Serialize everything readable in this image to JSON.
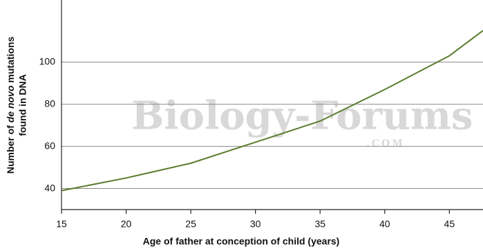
{
  "chart_data": {
    "type": "line",
    "xlabel": "Age of father at conception of child (years)",
    "ylabel": [
      [
        "Number of ",
        "de novo",
        " mutations"
      ],
      [
        "found in DNA"
      ]
    ],
    "watermark": [
      "Biology-Forums",
      ".COM"
    ],
    "x": [
      15,
      20,
      25,
      30,
      35,
      40,
      45,
      47.6
    ],
    "series": [
      {
        "color": "#5a7d2e",
        "values": [
          39,
          45,
          52,
          62,
          72,
          87,
          103,
          115
        ]
      }
    ],
    "xlim": [
      15,
      47.6
    ],
    "xticks": [
      15,
      20,
      25,
      30,
      35,
      40,
      45
    ],
    "ylim": [
      30,
      129.5
    ],
    "yticks": [
      40,
      60,
      80,
      100
    ],
    "grid": true
  }
}
